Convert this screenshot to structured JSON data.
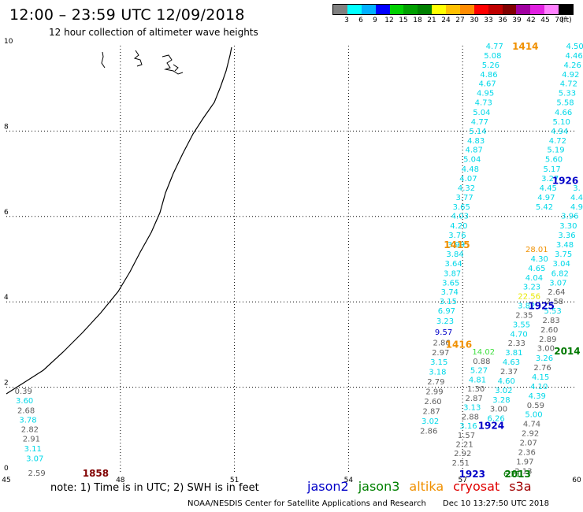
{
  "header": {
    "title": "12:00 – 23:59 UTC 12/09/2018",
    "subtitle": "12 hour collection of altimeter wave heights"
  },
  "legend": {
    "unit": "(ft)",
    "colors": [
      "#808080",
      "#00ffff",
      "#00b0ff",
      "#0000ff",
      "#00d000",
      "#00a000",
      "#008000",
      "#ffff00",
      "#ffc000",
      "#ff8c00",
      "#ff0000",
      "#c00000",
      "#800000",
      "#a000a0",
      "#e020e0",
      "#ff80ff",
      "#000000"
    ],
    "tick_labels": [
      "3",
      "6",
      "9",
      "12",
      "15",
      "18",
      "21",
      "24",
      "27",
      "30",
      "33",
      "36",
      "39",
      "42",
      "45",
      "70"
    ]
  },
  "axes": {
    "x_ticks": [
      "45",
      "48",
      "51",
      "54",
      "57",
      "60"
    ],
    "y_ticks": [
      "0",
      "2",
      "4",
      "6",
      "8",
      "10"
    ]
  },
  "colors": {
    "gray": "#606060",
    "cyan": "#00d8e8",
    "blue": "#0000c8",
    "green": "#007800",
    "orange": "#f09000",
    "yellow": "#e8e800",
    "lime": "#40e040",
    "darkred": "#800000"
  },
  "time_labels": [
    {
      "text": "1858",
      "lon": 47.35,
      "lat": 0.0,
      "color": "darkred"
    },
    {
      "text": "1414",
      "lon": 58.65,
      "lat": 10.0,
      "color": "orange"
    },
    {
      "text": "1415",
      "lon": 56.85,
      "lat": 5.35,
      "color": "orange"
    },
    {
      "text": "1416",
      "lon": 56.9,
      "lat": 3.02,
      "color": "orange"
    },
    {
      "text": "1926",
      "lon": 59.7,
      "lat": 6.85,
      "color": "blue"
    },
    {
      "text": "1925",
      "lon": 59.07,
      "lat": 3.92,
      "color": "blue"
    },
    {
      "text": "1924",
      "lon": 57.75,
      "lat": 1.12,
      "color": "blue"
    },
    {
      "text": "1923",
      "lon": 57.25,
      "lat": -0.02,
      "color": "blue"
    },
    {
      "text": "2014",
      "lon": 59.75,
      "lat": 2.86,
      "color": "green"
    },
    {
      "text": "2013",
      "lon": 58.45,
      "lat": -0.02,
      "color": "green"
    }
  ],
  "wave_heights": [
    {
      "v": "0.39",
      "lon": 45.45,
      "lat": 1.92,
      "c": "gray"
    },
    {
      "v": "3.60",
      "lon": 45.48,
      "lat": 1.7,
      "c": "cyan"
    },
    {
      "v": "2.68",
      "lon": 45.52,
      "lat": 1.47,
      "c": "gray"
    },
    {
      "v": "3.78",
      "lon": 45.57,
      "lat": 1.25,
      "c": "cyan"
    },
    {
      "v": "2.82",
      "lon": 45.62,
      "lat": 1.02,
      "c": "gray"
    },
    {
      "v": "2.91",
      "lon": 45.66,
      "lat": 0.8,
      "c": "gray"
    },
    {
      "v": "3.11",
      "lon": 45.7,
      "lat": 0.57,
      "c": "cyan"
    },
    {
      "v": "3.07",
      "lon": 45.75,
      "lat": 0.34,
      "c": "cyan"
    },
    {
      "v": "2.59",
      "lon": 45.8,
      "lat": 0.0,
      "c": "gray"
    },
    {
      "v": "4.77",
      "lon": 57.84,
      "lat": 10.0,
      "c": "cyan"
    },
    {
      "v": "5.08",
      "lon": 57.79,
      "lat": 9.78,
      "c": "cyan"
    },
    {
      "v": "5.26",
      "lon": 57.74,
      "lat": 9.56,
      "c": "cyan"
    },
    {
      "v": "4.86",
      "lon": 57.69,
      "lat": 9.34,
      "c": "cyan"
    },
    {
      "v": "4.67",
      "lon": 57.65,
      "lat": 9.12,
      "c": "cyan"
    },
    {
      "v": "4.95",
      "lon": 57.6,
      "lat": 8.9,
      "c": "cyan"
    },
    {
      "v": "4.73",
      "lon": 57.55,
      "lat": 8.68,
      "c": "cyan"
    },
    {
      "v": "5.04",
      "lon": 57.5,
      "lat": 8.45,
      "c": "cyan"
    },
    {
      "v": "4.77",
      "lon": 57.45,
      "lat": 8.23,
      "c": "cyan"
    },
    {
      "v": "5.14",
      "lon": 57.4,
      "lat": 8.01,
      "c": "cyan"
    },
    {
      "v": "4.83",
      "lon": 57.35,
      "lat": 7.79,
      "c": "cyan"
    },
    {
      "v": "4.87",
      "lon": 57.3,
      "lat": 7.57,
      "c": "cyan"
    },
    {
      "v": "5.04",
      "lon": 57.25,
      "lat": 7.35,
      "c": "cyan"
    },
    {
      "v": "4.48",
      "lon": 57.2,
      "lat": 7.12,
      "c": "cyan"
    },
    {
      "v": "4.07",
      "lon": 57.15,
      "lat": 6.9,
      "c": "cyan"
    },
    {
      "v": "4.32",
      "lon": 57.1,
      "lat": 6.68,
      "c": "cyan"
    },
    {
      "v": "3.77",
      "lon": 57.05,
      "lat": 6.46,
      "c": "cyan"
    },
    {
      "v": "3.65",
      "lon": 56.97,
      "lat": 6.24,
      "c": "cyan"
    },
    {
      "v": "4.03",
      "lon": 56.93,
      "lat": 6.02,
      "c": "cyan"
    },
    {
      "v": "4.20",
      "lon": 56.9,
      "lat": 5.79,
      "c": "cyan"
    },
    {
      "v": "3.76",
      "lon": 56.86,
      "lat": 5.57,
      "c": "cyan"
    },
    {
      "v": "3.99",
      "lon": 56.83,
      "lat": 5.35,
      "c": "cyan"
    },
    {
      "v": "3.84",
      "lon": 56.8,
      "lat": 5.13,
      "c": "cyan"
    },
    {
      "v": "3.64",
      "lon": 56.76,
      "lat": 4.91,
      "c": "cyan"
    },
    {
      "v": "3.87",
      "lon": 56.73,
      "lat": 4.68,
      "c": "cyan"
    },
    {
      "v": "3.65",
      "lon": 56.69,
      "lat": 4.46,
      "c": "cyan"
    },
    {
      "v": "3.74",
      "lon": 56.66,
      "lat": 4.24,
      "c": "cyan"
    },
    {
      "v": "3.15",
      "lon": 56.62,
      "lat": 4.02,
      "c": "cyan"
    },
    {
      "v": "6.97",
      "lon": 56.58,
      "lat": 3.8,
      "c": "cyan"
    },
    {
      "v": "3.23",
      "lon": 56.54,
      "lat": 3.56,
      "c": "cyan"
    },
    {
      "v": "9.57",
      "lon": 56.5,
      "lat": 3.3,
      "c": "blue"
    },
    {
      "v": "2.86",
      "lon": 56.45,
      "lat": 3.05,
      "c": "gray"
    },
    {
      "v": "2.97",
      "lon": 56.42,
      "lat": 2.82,
      "c": "gray"
    },
    {
      "v": "3.15",
      "lon": 56.38,
      "lat": 2.6,
      "c": "cyan"
    },
    {
      "v": "3.18",
      "lon": 56.34,
      "lat": 2.37,
      "c": "cyan"
    },
    {
      "v": "2.79",
      "lon": 56.3,
      "lat": 2.14,
      "c": "gray"
    },
    {
      "v": "2.99",
      "lon": 56.26,
      "lat": 1.91,
      "c": "gray"
    },
    {
      "v": "2.60",
      "lon": 56.22,
      "lat": 1.68,
      "c": "gray"
    },
    {
      "v": "2.87",
      "lon": 56.18,
      "lat": 1.45,
      "c": "gray"
    },
    {
      "v": "3.02",
      "lon": 56.15,
      "lat": 1.22,
      "c": "cyan"
    },
    {
      "v": "2.86",
      "lon": 56.11,
      "lat": 0.99,
      "c": "gray"
    },
    {
      "v": "14.02",
      "lon": 57.55,
      "lat": 2.84,
      "c": "lime"
    },
    {
      "v": "0.88",
      "lon": 57.5,
      "lat": 2.62,
      "c": "gray"
    },
    {
      "v": "5.27",
      "lon": 57.43,
      "lat": 2.41,
      "c": "cyan"
    },
    {
      "v": "4.81",
      "lon": 57.39,
      "lat": 2.19,
      "c": "cyan"
    },
    {
      "v": "1.30",
      "lon": 57.35,
      "lat": 1.97,
      "c": "gray"
    },
    {
      "v": "2.87",
      "lon": 57.3,
      "lat": 1.75,
      "c": "gray"
    },
    {
      "v": "3.13",
      "lon": 57.25,
      "lat": 1.54,
      "c": "cyan"
    },
    {
      "v": "2.88",
      "lon": 57.2,
      "lat": 1.32,
      "c": "gray"
    },
    {
      "v": "3.16",
      "lon": 57.15,
      "lat": 1.11,
      "c": "cyan"
    },
    {
      "v": "1.57",
      "lon": 57.1,
      "lat": 0.89,
      "c": "gray"
    },
    {
      "v": "2.21",
      "lon": 57.05,
      "lat": 0.67,
      "c": "gray"
    },
    {
      "v": "2.92",
      "lon": 57.0,
      "lat": 0.46,
      "c": "gray"
    },
    {
      "v": "2.51",
      "lon": 56.95,
      "lat": 0.24,
      "c": "gray"
    },
    {
      "v": "28.01",
      "lon": 58.95,
      "lat": 5.24,
      "c": "orange"
    },
    {
      "v": "4.30",
      "lon": 59.02,
      "lat": 5.02,
      "c": "cyan"
    },
    {
      "v": "4.65",
      "lon": 58.95,
      "lat": 4.8,
      "c": "cyan"
    },
    {
      "v": "4.04",
      "lon": 58.88,
      "lat": 4.58,
      "c": "cyan"
    },
    {
      "v": "3.23",
      "lon": 58.82,
      "lat": 4.36,
      "c": "cyan"
    },
    {
      "v": "22.56",
      "lon": 58.75,
      "lat": 4.14,
      "c": "yellow"
    },
    {
      "v": "3.82",
      "lon": 58.68,
      "lat": 3.92,
      "c": "cyan"
    },
    {
      "v": "2.35",
      "lon": 58.62,
      "lat": 3.7,
      "c": "gray"
    },
    {
      "v": "3.55",
      "lon": 58.55,
      "lat": 3.48,
      "c": "cyan"
    },
    {
      "v": "4.70",
      "lon": 58.48,
      "lat": 3.26,
      "c": "cyan"
    },
    {
      "v": "2.33",
      "lon": 58.42,
      "lat": 3.04,
      "c": "gray"
    },
    {
      "v": "3.81",
      "lon": 58.35,
      "lat": 2.82,
      "c": "cyan"
    },
    {
      "v": "4.63",
      "lon": 58.28,
      "lat": 2.6,
      "c": "cyan"
    },
    {
      "v": "2.37",
      "lon": 58.22,
      "lat": 2.38,
      "c": "gray"
    },
    {
      "v": "4.60",
      "lon": 58.15,
      "lat": 2.16,
      "c": "cyan"
    },
    {
      "v": "3.02",
      "lon": 58.08,
      "lat": 1.94,
      "c": "cyan"
    },
    {
      "v": "3.28",
      "lon": 58.02,
      "lat": 1.72,
      "c": "cyan"
    },
    {
      "v": "3.00",
      "lon": 57.95,
      "lat": 1.5,
      "c": "gray"
    },
    {
      "v": "6.26",
      "lon": 57.88,
      "lat": 1.28,
      "c": "cyan"
    },
    {
      "v": "4.50",
      "lon": 59.95,
      "lat": 10.0,
      "c": "cyan"
    },
    {
      "v": "4.46",
      "lon": 59.93,
      "lat": 9.78,
      "c": "cyan"
    },
    {
      "v": "4.26",
      "lon": 59.89,
      "lat": 9.56,
      "c": "cyan"
    },
    {
      "v": "4.92",
      "lon": 59.84,
      "lat": 9.34,
      "c": "cyan"
    },
    {
      "v": "4.72",
      "lon": 59.79,
      "lat": 9.12,
      "c": "cyan"
    },
    {
      "v": "5.33",
      "lon": 59.75,
      "lat": 8.9,
      "c": "cyan"
    },
    {
      "v": "5.58",
      "lon": 59.7,
      "lat": 8.68,
      "c": "cyan"
    },
    {
      "v": "4.66",
      "lon": 59.65,
      "lat": 8.45,
      "c": "cyan"
    },
    {
      "v": "5.10",
      "lon": 59.6,
      "lat": 8.23,
      "c": "cyan"
    },
    {
      "v": "4.94",
      "lon": 59.55,
      "lat": 8.01,
      "c": "cyan"
    },
    {
      "v": "4.72",
      "lon": 59.5,
      "lat": 7.79,
      "c": "cyan"
    },
    {
      "v": "5.19",
      "lon": 59.45,
      "lat": 7.57,
      "c": "cyan"
    },
    {
      "v": "5.60",
      "lon": 59.4,
      "lat": 7.35,
      "c": "cyan"
    },
    {
      "v": "5.17",
      "lon": 59.35,
      "lat": 7.12,
      "c": "cyan"
    },
    {
      "v": "3.27",
      "lon": 59.3,
      "lat": 6.9,
      "c": "cyan"
    },
    {
      "v": "4.45",
      "lon": 59.25,
      "lat": 6.68,
      "c": "cyan"
    },
    {
      "v": "4.97",
      "lon": 59.2,
      "lat": 6.46,
      "c": "cyan"
    },
    {
      "v": "5.42",
      "lon": 59.15,
      "lat": 6.24,
      "c": "cyan"
    },
    {
      "v": "3.96",
      "lon": 59.82,
      "lat": 6.02,
      "c": "cyan"
    },
    {
      "v": "3.30",
      "lon": 59.78,
      "lat": 5.79,
      "c": "cyan"
    },
    {
      "v": "3.36",
      "lon": 59.74,
      "lat": 5.57,
      "c": "cyan"
    },
    {
      "v": "3.48",
      "lon": 59.69,
      "lat": 5.35,
      "c": "cyan"
    },
    {
      "v": "3.75",
      "lon": 59.65,
      "lat": 5.13,
      "c": "cyan"
    },
    {
      "v": "3.04",
      "lon": 59.6,
      "lat": 4.91,
      "c": "cyan"
    },
    {
      "v": "6.82",
      "lon": 59.56,
      "lat": 4.68,
      "c": "cyan"
    },
    {
      "v": "3.07",
      "lon": 59.51,
      "lat": 4.46,
      "c": "cyan"
    },
    {
      "v": "2.64",
      "lon": 59.47,
      "lat": 4.24,
      "c": "gray"
    },
    {
      "v": "2.58",
      "lon": 59.42,
      "lat": 4.02,
      "c": "gray"
    },
    {
      "v": "5.53",
      "lon": 59.37,
      "lat": 3.8,
      "c": "cyan"
    },
    {
      "v": "2.83",
      "lon": 59.33,
      "lat": 3.58,
      "c": "gray"
    },
    {
      "v": "2.60",
      "lon": 59.28,
      "lat": 3.36,
      "c": "gray"
    },
    {
      "v": "2.89",
      "lon": 59.24,
      "lat": 3.14,
      "c": "gray"
    },
    {
      "v": "3.00",
      "lon": 59.19,
      "lat": 2.92,
      "c": "gray"
    },
    {
      "v": "3.26",
      "lon": 59.15,
      "lat": 2.69,
      "c": "cyan"
    },
    {
      "v": "2.76",
      "lon": 59.1,
      "lat": 2.47,
      "c": "gray"
    },
    {
      "v": "4.15",
      "lon": 59.05,
      "lat": 2.25,
      "c": "cyan"
    },
    {
      "v": "4.10",
      "lon": 59.01,
      "lat": 2.03,
      "c": "cyan"
    },
    {
      "v": "4.39",
      "lon": 58.96,
      "lat": 1.81,
      "c": "cyan"
    },
    {
      "v": "0.59",
      "lon": 58.92,
      "lat": 1.59,
      "c": "gray"
    },
    {
      "v": "5.00",
      "lon": 58.87,
      "lat": 1.37,
      "c": "cyan"
    },
    {
      "v": "4.74",
      "lon": 58.82,
      "lat": 1.15,
      "c": "gray"
    },
    {
      "v": "2.92",
      "lon": 58.78,
      "lat": 0.93,
      "c": "gray"
    },
    {
      "v": "2.07",
      "lon": 58.73,
      "lat": 0.71,
      "c": "gray"
    },
    {
      "v": "2.36",
      "lon": 58.69,
      "lat": 0.49,
      "c": "gray"
    },
    {
      "v": "1.97",
      "lon": 58.64,
      "lat": 0.27,
      "c": "gray"
    },
    {
      "v": "2.13",
      "lon": 58.6,
      "lat": 0.05,
      "c": "gray"
    },
    {
      "v": "6.21",
      "lon": 58.3,
      "lat": -0.02,
      "c": "green"
    },
    {
      "v": "4.9",
      "lon": 60.0,
      "lat": 6.24,
      "c": "cyan"
    },
    {
      "v": "4.4",
      "lon": 60.0,
      "lat": 6.46,
      "c": "cyan"
    },
    {
      "v": "3.",
      "lon": 60.0,
      "lat": 6.68,
      "c": "cyan"
    }
  ],
  "note": "note:  1) Time is in UTC;  2) SWH is in feet",
  "satellites": [
    {
      "name": "jason2",
      "color": "#0000c8"
    },
    {
      "name": "jason3",
      "color": "#008000"
    },
    {
      "name": "altika",
      "color": "#f09000"
    },
    {
      "name": "cryosat",
      "color": "#e00000"
    },
    {
      "name": "s3a",
      "color": "#a00000"
    }
  ],
  "footer": {
    "center": "NOAA/NESDIS Center for Satellite Applications and Research",
    "timestamp": "Dec 10 13:27:50 UTC 2018"
  }
}
